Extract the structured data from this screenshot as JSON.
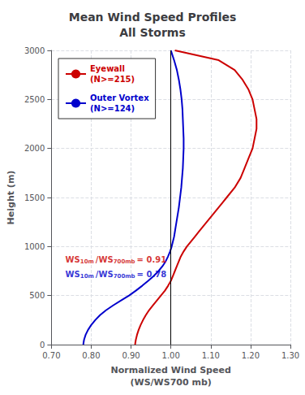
{
  "chart_data": {
    "type": "line",
    "title": "Mean Wind Speed Profiles\nAll Storms",
    "xlabel": "Normalized Wind Speed\n(WS/WS700 mb)",
    "ylabel": "Height (m)",
    "xlim": [
      0.7,
      1.3
    ],
    "ylim": [
      0,
      3000
    ],
    "xticks": [
      {
        "value": 0.7,
        "label": "0.70"
      },
      {
        "value": 0.8,
        "label": "0.80"
      },
      {
        "value": 0.9,
        "label": "0.90"
      },
      {
        "value": 1.0,
        "label": "1.00"
      },
      {
        "value": 1.1,
        "label": "1.10"
      },
      {
        "value": 1.2,
        "label": "1.20"
      },
      {
        "value": 1.3,
        "label": "1.30"
      }
    ],
    "yticks": [
      0,
      500,
      1000,
      1500,
      2000,
      2500,
      3000
    ],
    "grid": true,
    "legend": "upper left",
    "vlines": [
      1.0
    ],
    "series": [
      {
        "name": "Eyewall\n(N>=215)",
        "color": "#cc0000",
        "x": [
          0.91,
          0.912,
          0.915,
          0.919,
          0.924,
          0.93,
          0.937,
          0.945,
          0.955,
          0.965,
          0.975,
          0.985,
          0.993,
          1.0,
          1.005,
          1.01,
          1.015,
          1.02,
          1.025,
          1.032,
          1.04,
          1.05,
          1.06,
          1.07,
          1.08,
          1.09,
          1.1,
          1.11,
          1.12,
          1.13,
          1.14,
          1.16,
          1.175,
          1.185,
          1.195,
          1.205,
          1.21,
          1.215,
          1.215,
          1.21,
          1.205,
          1.195,
          1.18,
          1.16,
          1.12,
          1.01
        ],
        "values": [
          0,
          50,
          100,
          150,
          200,
          250,
          300,
          350,
          400,
          450,
          500,
          550,
          600,
          650,
          700,
          750,
          800,
          850,
          900,
          950,
          1000,
          1050,
          1100,
          1150,
          1200,
          1250,
          1300,
          1350,
          1400,
          1450,
          1500,
          1600,
          1700,
          1800,
          1900,
          2000,
          2100,
          2200,
          2300,
          2400,
          2500,
          2600,
          2700,
          2800,
          2900,
          3000
        ]
      },
      {
        "name": "Outer Vortex\n(N>=124)",
        "color": "#0000cc",
        "x": [
          0.78,
          0.782,
          0.786,
          0.792,
          0.8,
          0.81,
          0.822,
          0.837,
          0.855,
          0.875,
          0.895,
          0.912,
          0.928,
          0.943,
          0.957,
          0.969,
          0.979,
          0.987,
          0.993,
          0.998,
          1.002,
          1.005,
          1.008,
          1.01,
          1.012,
          1.014,
          1.016,
          1.018,
          1.02,
          1.023,
          1.026,
          1.028,
          1.03,
          1.031,
          1.032,
          1.032,
          1.031,
          1.03,
          1.029,
          1.027,
          1.024,
          1.02,
          1.015,
          1.008,
          1.0
        ],
        "values": [
          0,
          50,
          100,
          150,
          200,
          250,
          300,
          350,
          400,
          450,
          500,
          550,
          600,
          650,
          700,
          750,
          800,
          850,
          900,
          950,
          1000,
          1050,
          1100,
          1150,
          1200,
          1250,
          1300,
          1350,
          1400,
          1500,
          1600,
          1700,
          1800,
          1900,
          2000,
          2100,
          2200,
          2300,
          2400,
          2500,
          2600,
          2700,
          2800,
          2900,
          3000
        ]
      }
    ],
    "annotations": [
      {
        "x": 0.735,
        "y": 870,
        "color": "#cc0000",
        "parts": [
          {
            "text": "WS"
          },
          {
            "text": "10m",
            "sub": true
          },
          {
            "text": "/WS"
          },
          {
            "text": "700mb",
            "sub": true
          },
          {
            "text": "= 0.91"
          }
        ]
      },
      {
        "x": 0.735,
        "y": 720,
        "color": "#0000cc",
        "parts": [
          {
            "text": "WS"
          },
          {
            "text": "10m",
            "sub": true
          },
          {
            "text": "/WS"
          },
          {
            "text": "700mb",
            "sub": true
          },
          {
            "text": "= 0.78"
          }
        ]
      }
    ]
  }
}
